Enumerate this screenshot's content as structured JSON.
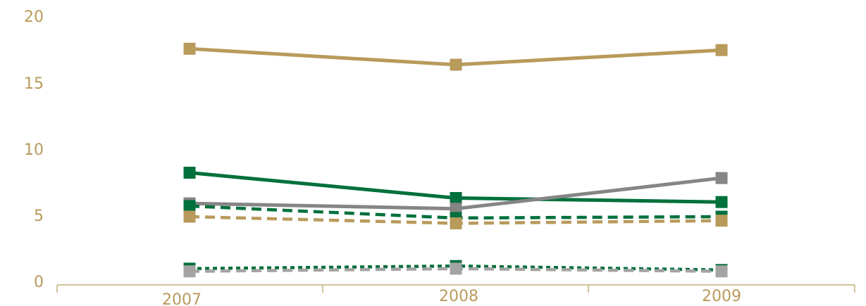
{
  "colors": {
    "gold": "#b89a5b",
    "green": "#00703c",
    "gray": "#858585",
    "lightgray": "#a3a3a3",
    "axis": "#c4ad7c",
    "label": "#b89a5b"
  },
  "chart_data": {
    "type": "line",
    "title": "",
    "xlabel": "",
    "ylabel": "",
    "categories": [
      "2007",
      "2008",
      "2009"
    ],
    "y_ticks": [
      "0",
      "5",
      "10",
      "15",
      "20"
    ],
    "ylim": [
      0,
      20
    ],
    "grid": false,
    "legend": "none",
    "series": [
      {
        "values": [
          17.4,
          16.2,
          17.3
        ],
        "color": "#b89a5b",
        "dash": "solid",
        "marker": "square"
      },
      {
        "values": [
          8.1,
          6.2,
          5.9
        ],
        "color": "#00703c",
        "dash": "solid",
        "marker": "square"
      },
      {
        "values": [
          5.8,
          5.4,
          7.7
        ],
        "color": "#858585",
        "dash": "solid",
        "marker": "square"
      },
      {
        "values": [
          5.6,
          4.7,
          4.8
        ],
        "color": "#00703c",
        "dash": "dashed",
        "marker": "square"
      },
      {
        "values": [
          4.8,
          4.3,
          4.5
        ],
        "color": "#b89a5b",
        "dash": "dashed",
        "marker": "square"
      },
      {
        "values": [
          0.9,
          1.1,
          0.8
        ],
        "color": "#00703c",
        "dash": "dotted",
        "marker": "square"
      },
      {
        "values": [
          0.7,
          0.9,
          0.7
        ],
        "color": "#a3a3a3",
        "dash": "dashed",
        "marker": "square"
      }
    ]
  }
}
